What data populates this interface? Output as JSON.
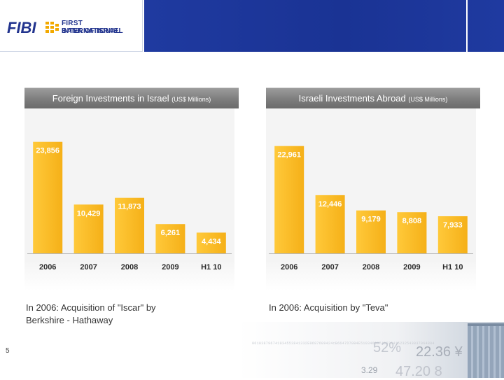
{
  "header": {
    "logo_word": "FIBI",
    "logo_line1": "FIRST INTERNATIONAL",
    "logo_line2": "BANK OF ISRAEL"
  },
  "colors": {
    "bar": "#f5b018",
    "bar_light": "#ffc93a",
    "label": "#ffffff",
    "header_blue": "#1f3aa0",
    "title_gray": "#808080"
  },
  "chart_data": [
    {
      "type": "bar",
      "title": "Foreign Investments in Israel",
      "unit": "(US$ Millions)",
      "categories": [
        "2006",
        "2007",
        "2008",
        "2009",
        "H1 10"
      ],
      "values": [
        23856,
        10429,
        11873,
        6261,
        4434
      ],
      "value_labels": [
        "23,856",
        "10,429",
        "11,873",
        "6,261",
        "4,434"
      ],
      "ylim": [
        0,
        28000
      ],
      "xlabel": "",
      "ylabel": "",
      "caption_lines": [
        "In 2006: Acquisition of \"Iscar\" by",
        "Berkshire - Hathaway"
      ]
    },
    {
      "type": "bar",
      "title": "Israeli Investments Abroad",
      "unit": "(US$ Millions)",
      "categories": [
        "2006",
        "2007",
        "2008",
        "2009",
        "H1 10"
      ],
      "values": [
        22961,
        12446,
        9179,
        8808,
        7933
      ],
      "value_labels": [
        "22,961",
        "12,446",
        "9,179",
        "8,808",
        "7,933"
      ],
      "ylim": [
        0,
        28000
      ],
      "xlabel": "",
      "ylabel": "",
      "caption_lines": [
        "In 2006: Acquisition by \"Teva\""
      ]
    }
  ],
  "footer": {
    "page_number": "5",
    "deco_1": "52%",
    "deco_2": "22.36 ¥",
    "deco_3": "3.29",
    "deco_4": "47.20 8",
    "deco_stream": "061038796741034553841332E0687609424cB6647D70B4E5103463874C638415232543037064884"
  }
}
